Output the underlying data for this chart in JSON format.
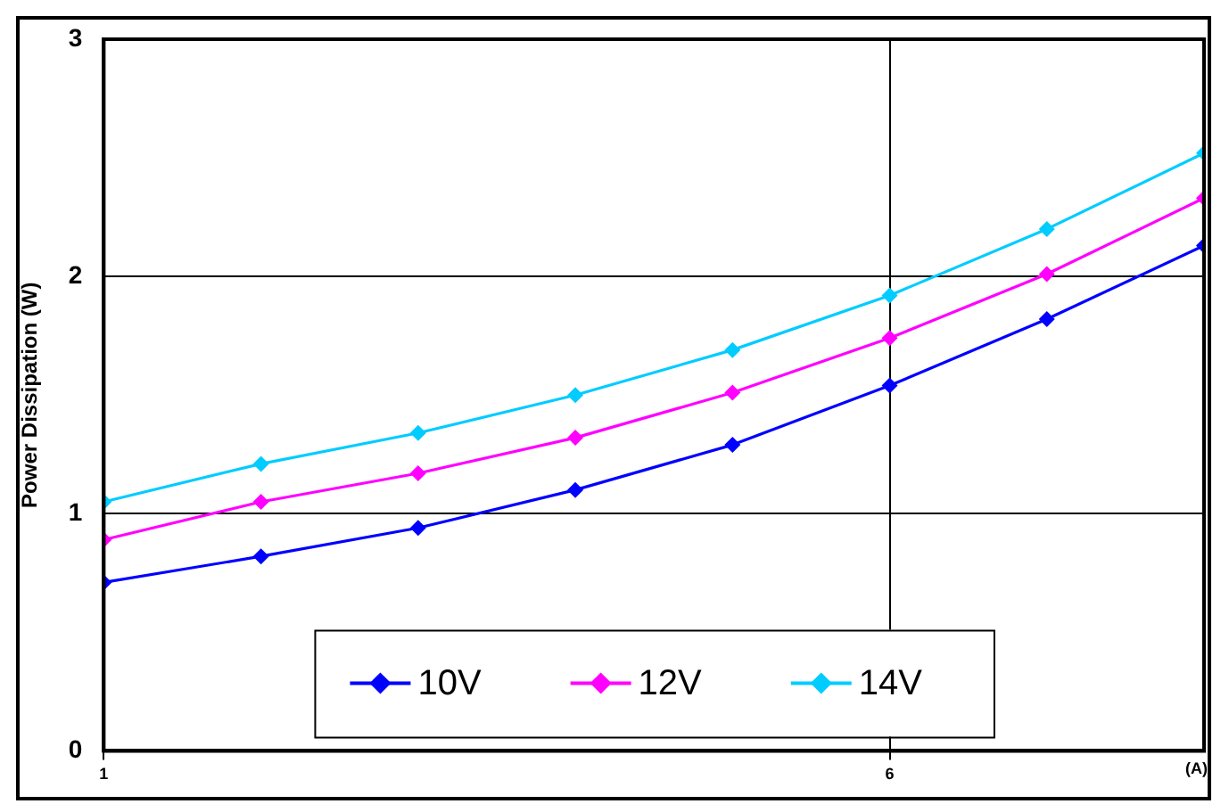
{
  "chart_data": {
    "type": "line",
    "xlabel": "(A)",
    "ylabel": "Power Dissipation (W)",
    "x": [
      1,
      2,
      3,
      4,
      5,
      6,
      7,
      8
    ],
    "xlim": [
      1,
      8
    ],
    "xticks": [
      1,
      6
    ],
    "ylim": [
      0,
      3
    ],
    "yticks": [
      0,
      1,
      2,
      3
    ],
    "grid": true,
    "legend": "bottom",
    "marker": "diamond",
    "line_style": "solid",
    "series": [
      {
        "name": "10V",
        "color": "#0000ff",
        "values": [
          0.71,
          0.82,
          0.94,
          1.1,
          1.29,
          1.54,
          1.82,
          2.13
        ]
      },
      {
        "name": "12V",
        "color": "#ff00ff",
        "values": [
          0.89,
          1.05,
          1.17,
          1.32,
          1.51,
          1.74,
          2.01,
          2.33
        ]
      },
      {
        "name": "14V",
        "color": "#00ccff",
        "values": [
          1.05,
          1.21,
          1.34,
          1.5,
          1.69,
          1.92,
          2.2,
          2.52
        ]
      }
    ]
  }
}
